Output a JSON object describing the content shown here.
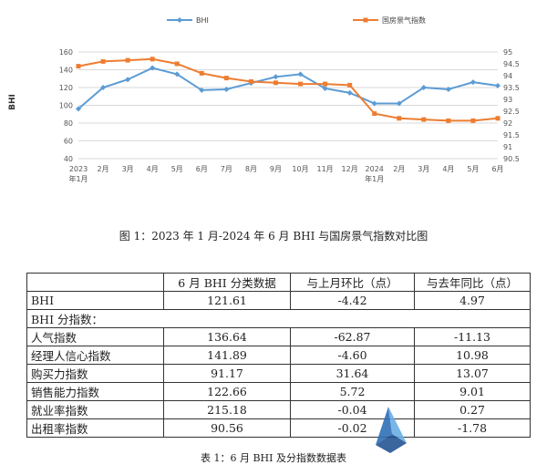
{
  "chart_data": {
    "type": "line",
    "x": [
      "2023\n年1月",
      "2月",
      "3月",
      "4月",
      "5月",
      "6月",
      "7月",
      "8月",
      "9月",
      "10月",
      "11月",
      "12月",
      "2024\n年1月",
      "2月",
      "3月",
      "4月",
      "5月",
      "6月"
    ],
    "series": [
      {
        "name": "BHI",
        "axis": "left",
        "color": "#5b9bd5",
        "values": [
          96,
          120,
          129,
          142,
          135,
          117,
          118,
          125,
          132,
          135,
          119,
          114,
          102,
          102,
          120,
          118,
          126,
          122
        ]
      },
      {
        "name": "国房景气指数",
        "axis": "right",
        "color": "#ed7d31",
        "values": [
          94.4,
          94.6,
          94.65,
          94.7,
          94.5,
          94.1,
          93.9,
          93.75,
          93.7,
          93.65,
          93.65,
          93.6,
          92.4,
          92.2,
          92.15,
          92.1,
          92.1,
          92.2
        ]
      }
    ],
    "ylim_left": [
      40,
      160
    ],
    "yticks_left": [
      40,
      60,
      80,
      100,
      120,
      140,
      160
    ],
    "ylabel_left": "BHI",
    "ylim_right": [
      90.5,
      95
    ],
    "yticks_right": [
      "90.5",
      "91",
      "91.5",
      "92",
      "92.5",
      "93",
      "93.5",
      "94",
      "94.5",
      "95"
    ],
    "grid": "horizontal",
    "legend": "top-center"
  },
  "figure_caption": "图 1：2023 年 1 月-2024 年 6 月 BHI 与国房景气指数对比图",
  "table": {
    "headers": [
      "",
      "6 月 BHI 分类数据",
      "与上月环比（点）",
      "与去年同比（点）"
    ],
    "rows": [
      {
        "label": "BHI",
        "values": [
          "121.61",
          "-4.42",
          "4.97"
        ]
      }
    ],
    "section_label": "BHI 分指数：",
    "sub_rows": [
      {
        "label": "人气指数",
        "values": [
          "136.64",
          "-62.87",
          "-11.13"
        ]
      },
      {
        "label": "经理人信心指数",
        "values": [
          "141.89",
          "-4.60",
          "10.98"
        ]
      },
      {
        "label": "购买力指数",
        "values": [
          "91.17",
          "31.64",
          "13.07"
        ]
      },
      {
        "label": "销售能力指数",
        "values": [
          "122.66",
          "5.72",
          "9.01"
        ]
      },
      {
        "label": "就业率指数",
        "values": [
          "215.18",
          "-0.04",
          "0.27"
        ]
      },
      {
        "label": "出租率指数",
        "values": [
          "90.56",
          "-0.02",
          "-1.78"
        ]
      }
    ]
  },
  "table_caption": "表 1：6 月 BHI 及分指数数据表"
}
